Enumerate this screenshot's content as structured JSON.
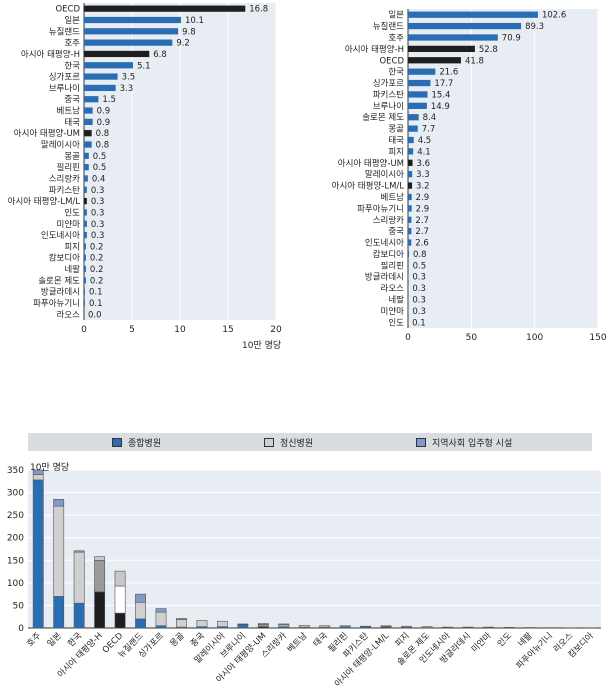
{
  "chart_data": [
    {
      "type": "bar",
      "orientation": "horizontal",
      "categories": [
        "OECD",
        "일본",
        "뉴질랜드",
        "호주",
        "아시아 태평양-H",
        "한국",
        "싱가포르",
        "브루나이",
        "중국",
        "베트남",
        "태국",
        "아시아 태평양-UM",
        "말레이시아",
        "몽골",
        "필리핀",
        "스리랑카",
        "파키스탄",
        "아시아 태평양-LM/L",
        "인도",
        "미얀마",
        "인도네시아",
        "피지",
        "캄보디아",
        "네팔",
        "솔로몬 제도",
        "방글라데시",
        "파푸아뉴기니",
        "라오스"
      ],
      "value_labels": [
        "16.8",
        "10.1",
        "9.8",
        "9.2",
        "6.8",
        "5.1",
        "3.5",
        "3.3",
        "1.5",
        "0.9",
        "0.9",
        "0.8",
        "0.8",
        "0.5",
        "0.5",
        "0.4",
        "0.3",
        "0.3",
        "0.3",
        "0.3",
        "0.3",
        "0.2",
        "0.2",
        "0.2",
        "0.2",
        "0.1",
        "0.1",
        "0.0"
      ],
      "values": [
        16.8,
        10.1,
        9.8,
        9.2,
        6.8,
        5.1,
        3.5,
        3.3,
        1.5,
        0.9,
        0.9,
        0.8,
        0.8,
        0.5,
        0.5,
        0.4,
        0.3,
        0.3,
        0.3,
        0.3,
        0.3,
        0.2,
        0.2,
        0.2,
        0.2,
        0.1,
        0.1,
        0.0
      ],
      "highlight": [
        "OECD",
        "아시아 태평양-H",
        "아시아 태평양-UM",
        "아시아 태평양-LM/L"
      ],
      "xlim": [
        0,
        20
      ],
      "xticks": [
        "0",
        "5",
        "10",
        "15",
        "20"
      ],
      "xlabel": "10만 명당",
      "grid": true
    },
    {
      "type": "bar",
      "orientation": "horizontal",
      "categories": [
        "일본",
        "뉴질랜드",
        "호주",
        "아시아 태평양-H",
        "OECD",
        "한국",
        "싱가포르",
        "파키스탄",
        "브루나이",
        "솔로몬 제도",
        "몽골",
        "태국",
        "피지",
        "아시아 태평양-UM",
        "말레이시아",
        "아시아 태평양-LM/L",
        "베트남",
        "파푸아뉴기니",
        "스리랑카",
        "중국",
        "인도네시아",
        "캄보디아",
        "필리핀",
        "방글라데시",
        "라오스",
        "네팔",
        "미얀마",
        "인도"
      ],
      "value_labels": [
        "102.6",
        "89.3",
        "70.9",
        "52.8",
        "41.8",
        "21.6",
        "17.7",
        "15.4",
        "14.9",
        "8.4",
        "7.7",
        "4.5",
        "4.1",
        "3.6",
        "3.3",
        "3.2",
        "2.9",
        "2.9",
        "2.7",
        "2.7",
        "2.6",
        "0.8",
        "0.5",
        "0.3",
        "0.3",
        "0.3",
        "0.3",
        "0.1"
      ],
      "values": [
        102.6,
        89.3,
        70.9,
        52.8,
        41.8,
        21.6,
        17.7,
        15.4,
        14.9,
        8.4,
        7.7,
        4.5,
        4.1,
        3.6,
        3.3,
        3.2,
        2.9,
        2.9,
        2.7,
        2.7,
        2.6,
        0.8,
        0.5,
        0.3,
        0.3,
        0.3,
        0.3,
        0.1
      ],
      "highlight": [
        "아시아 태평양-H",
        "OECD",
        "아시아 태평양-UM",
        "아시아 태평양-LM/L"
      ],
      "xlim": [
        0,
        150
      ],
      "xticks": [
        "0",
        "50",
        "100",
        "150"
      ],
      "grid": true
    },
    {
      "type": "bar",
      "stacked": true,
      "ylabel": "10만 명당",
      "ylim": [
        0,
        350
      ],
      "yticks": [
        "0",
        "50",
        "100",
        "150",
        "200",
        "250",
        "300",
        "350"
      ],
      "legend_position": "top",
      "categories": [
        "호주",
        "일본",
        "한국",
        "아시아 태평양-H",
        "OECD",
        "뉴질랜드",
        "싱가포르",
        "몽골",
        "중국",
        "말레이시아",
        "브루나이",
        "아시아 태평양-UM",
        "스리랑카",
        "베트남",
        "태국",
        "필리핀",
        "파키스탄",
        "아시아 태평양-LM/L",
        "피지",
        "솔로몬 제도",
        "인도네시아",
        "방글라데시",
        "미얀마",
        "인도",
        "네팔",
        "파푸아뉴기니",
        "라오스",
        "캄보디아"
      ],
      "series": [
        {
          "name": "종합병원",
          "values": [
            328,
            70,
            55,
            80,
            33,
            20,
            5,
            2,
            3,
            3,
            8,
            3,
            3,
            2,
            2,
            3,
            3,
            2,
            2,
            1,
            1,
            1,
            1,
            1,
            0.5,
            0.5,
            0.3,
            0.3
          ]
        },
        {
          "name": "정신병원",
          "values": [
            12,
            200,
            113,
            70,
            60,
            37,
            30,
            17,
            14,
            12,
            0,
            5,
            4,
            4,
            3,
            2,
            1,
            2,
            2,
            2,
            1,
            1,
            1,
            0.5,
            0.5,
            0.3,
            0.3,
            0.3
          ]
        },
        {
          "name": "지역사회 입주형 시설",
          "values": [
            10,
            15,
            3,
            8,
            33,
            18,
            8,
            2,
            0,
            0,
            1,
            2,
            2,
            0,
            0,
            0,
            0,
            1,
            0,
            0,
            0,
            0,
            0,
            0,
            0,
            0,
            0,
            0
          ]
        }
      ]
    }
  ],
  "colors": {
    "blue": "#2a6db5",
    "dark": "#1e1e1e",
    "gray": "#d0d0d0",
    "lightblue": "#7f99c8",
    "grid_bg": "#e8edf3"
  }
}
